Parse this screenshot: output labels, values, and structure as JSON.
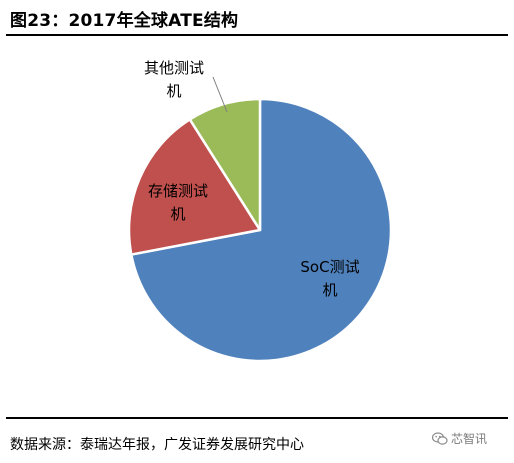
{
  "figure": {
    "title": "图23：2017年全球ATE结构",
    "source": "数据来源：泰瑞达年报，广发证券发展研究中心"
  },
  "watermark": {
    "text": "芯智讯",
    "icon": "wechat-icon"
  },
  "chart_data": {
    "type": "pie",
    "title": "",
    "start_angle_deg": 0,
    "direction": "clockwise",
    "colors": {
      "border": "#ffffff",
      "leader_line": "#7f7f7f"
    },
    "slices": [
      {
        "label_lines": [
          "SoC测试",
          "机"
        ],
        "value": 72,
        "color": "#4f81bd"
      },
      {
        "label_lines": [
          "存储测试",
          "机"
        ],
        "value": 19,
        "color": "#c0504d"
      },
      {
        "label_lines": [
          "其他测试",
          "机"
        ],
        "value": 9,
        "color": "#9bbb59"
      }
    ]
  }
}
